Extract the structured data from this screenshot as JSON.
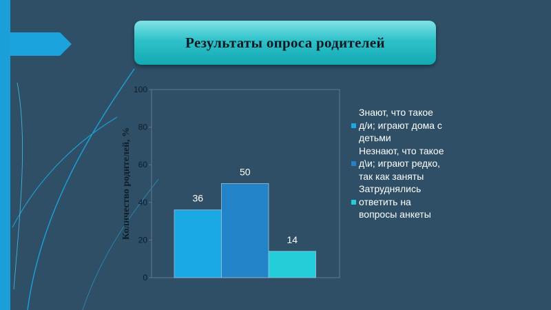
{
  "title": "Результаты опроса родителей",
  "colors": {
    "background": "#2e4f66",
    "accent": "#1fa6e0",
    "title_box": "#2ec1c9"
  },
  "chart_data": {
    "type": "bar",
    "title": "",
    "xlabel": "",
    "ylabel": "Количество родителей, %",
    "ylim": [
      0,
      100
    ],
    "yticks": [
      "0",
      "20",
      "40",
      "60",
      "80",
      "100"
    ],
    "grid": false,
    "legend_position": "right",
    "series": [
      {
        "name": "Знают, что такое д/и; играют дома с детьми",
        "value": 36,
        "label": "36",
        "color": "#1ca8e2"
      },
      {
        "name": "Незнают, что такое д\\и; играют редко, так как заняты",
        "value": 50,
        "label": "50",
        "color": "#2383c8"
      },
      {
        "name": "Затруднялись ответить на вопросы анкеты",
        "value": 14,
        "label": "14",
        "color": "#22cdd9"
      }
    ]
  },
  "legend": [
    {
      "lines": [
        "Знают, что такое",
        "д/и; играют дома с",
        "детьми"
      ]
    },
    {
      "lines": [
        "Незнают, что такое",
        "д\\и; играют редко,",
        "так как заняты"
      ]
    },
    {
      "lines": [
        "Затруднялись",
        "ответить на",
        "вопросы анкеты"
      ]
    }
  ]
}
